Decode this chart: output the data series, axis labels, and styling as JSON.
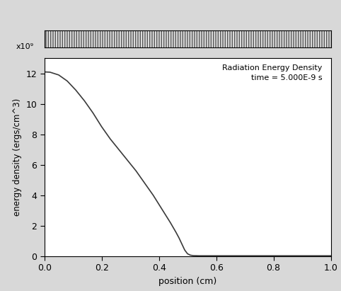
{
  "title_line1": "Radiation Energy Density",
  "title_line2": "time = 5.000E-9 s",
  "xlabel": "position (cm)",
  "ylabel": "energy density (ergs/cm^3)",
  "xlim": [
    0.0,
    1.0
  ],
  "ylim": [
    0.0,
    13.0
  ],
  "yticks": [
    0,
    2,
    4,
    6,
    8,
    10,
    12
  ],
  "xticks": [
    0.0,
    0.2,
    0.4,
    0.6,
    0.8,
    1.0
  ],
  "exponent_label": "x10⁹",
  "line_color": "#3a3a3a",
  "background_color": "#d8d8d8",
  "plot_bg_color": "#ffffff",
  "curve_x": [
    0.0,
    0.02,
    0.05,
    0.08,
    0.11,
    0.14,
    0.17,
    0.2,
    0.23,
    0.26,
    0.29,
    0.32,
    0.35,
    0.38,
    0.4,
    0.42,
    0.44,
    0.46,
    0.47,
    0.48,
    0.49,
    0.5,
    0.51,
    0.52,
    0.54,
    0.56,
    0.6,
    1.0
  ],
  "curve_y": [
    12.1,
    12.08,
    11.9,
    11.5,
    10.9,
    10.2,
    9.4,
    8.5,
    7.7,
    7.0,
    6.3,
    5.6,
    4.8,
    4.0,
    3.4,
    2.8,
    2.2,
    1.55,
    1.2,
    0.8,
    0.4,
    0.15,
    0.06,
    0.03,
    0.02,
    0.02,
    0.02,
    0.02
  ]
}
